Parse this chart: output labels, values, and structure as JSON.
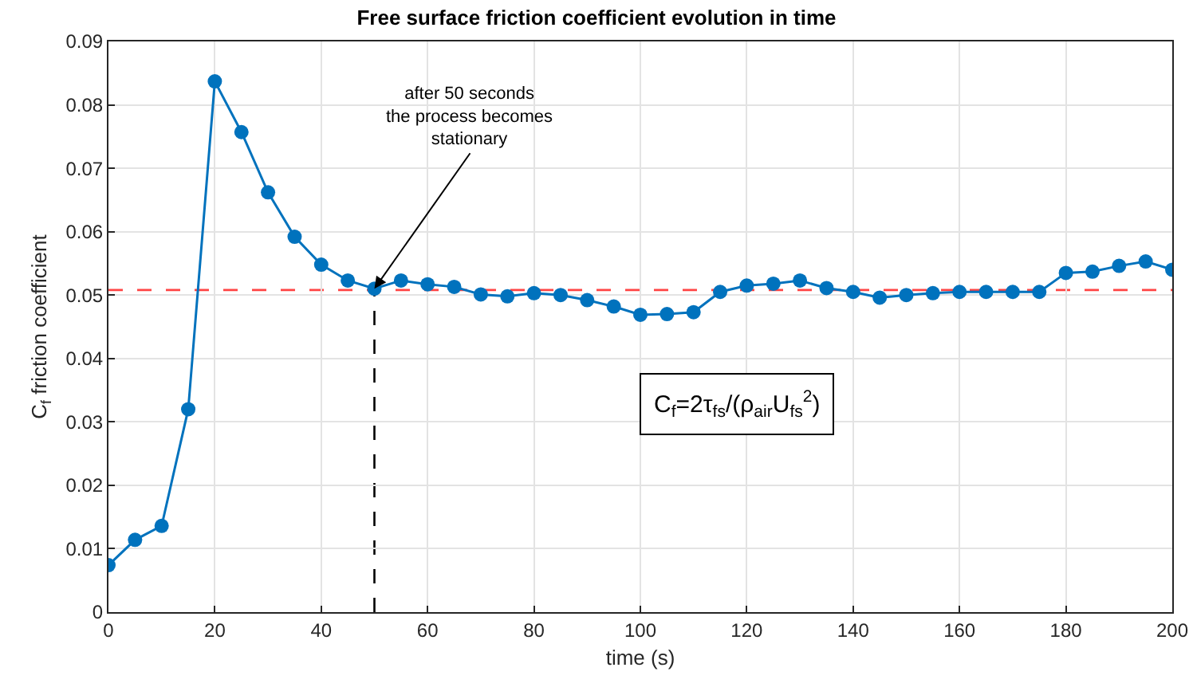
{
  "chart_data": {
    "type": "line",
    "title": "Free surface friction coefficient evolution in time",
    "xlabel": "time (s)",
    "ylabel": "C$_{f}$ friction coefficient",
    "x": [
      0,
      5,
      10,
      15,
      20,
      25,
      30,
      35,
      40,
      45,
      50,
      55,
      60,
      65,
      70,
      75,
      80,
      85,
      90,
      95,
      100,
      105,
      110,
      115,
      120,
      125,
      130,
      135,
      140,
      145,
      150,
      155,
      160,
      165,
      170,
      175,
      180,
      185,
      190,
      195,
      200
    ],
    "series": [
      {
        "color": "#0072bd",
        "values": [
          0.0074,
          0.0114,
          0.0136,
          0.032,
          0.0837,
          0.0757,
          0.0662,
          0.0592,
          0.0548,
          0.0523,
          0.051,
          0.0523,
          0.0517,
          0.0513,
          0.0501,
          0.0498,
          0.0503,
          0.05,
          0.0492,
          0.0482,
          0.0469,
          0.047,
          0.0473,
          0.0505,
          0.0515,
          0.0518,
          0.0523,
          0.0511,
          0.0505,
          0.0496,
          0.05,
          0.0503,
          0.0505,
          0.0505,
          0.0505,
          0.0505,
          0.0535,
          0.0537,
          0.0546,
          0.0553,
          0.054
        ]
      }
    ],
    "xlim": [
      0,
      200
    ],
    "xticks": [
      0,
      20,
      40,
      60,
      80,
      100,
      120,
      140,
      160,
      180,
      200
    ],
    "ylim": [
      0,
      0.09
    ],
    "yticks": [
      0,
      0.01,
      0.02,
      0.03,
      0.04,
      0.05,
      0.06,
      0.07,
      0.08,
      0.09
    ],
    "grid": true,
    "marker": "circle",
    "line_style": "solid",
    "ref_lines": [
      {
        "axis": "y",
        "value": 0.0508,
        "color": "#ff4444",
        "line_style": "dashed"
      },
      {
        "axis": "x",
        "value": 50,
        "color": "#000000",
        "line_style": "dashed"
      }
    ],
    "annotations": [
      {
        "text": "after 50 seconds\nthe process becomes\nstationary",
        "x": 50,
        "y": 0.051
      },
      "C$_{f}$=2τ$_{fs}$/(ρ$_{air}$U$_{fs}$$^{2}$)"
    ]
  }
}
